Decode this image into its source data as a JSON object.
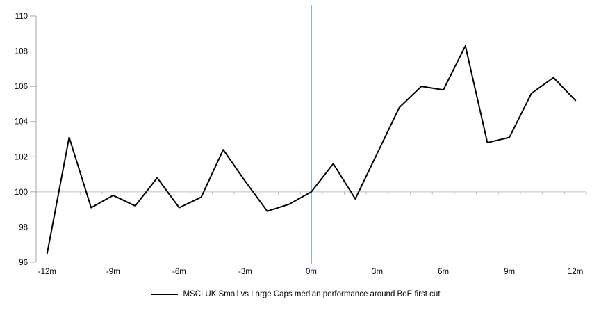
{
  "chart_data": {
    "type": "line",
    "title": "",
    "xlabel": "",
    "ylabel": "",
    "x": [
      -12,
      -11,
      -10,
      -9,
      -8,
      -7,
      -6,
      -5,
      -4,
      -3,
      -2,
      -1,
      0,
      1,
      2,
      3,
      4,
      5,
      6,
      7,
      8,
      9,
      10,
      11,
      12
    ],
    "series": [
      {
        "name": "MSCI UK Small vs Large Caps median performance around BoE first cut",
        "values": [
          96.5,
          103.1,
          99.1,
          99.8,
          99.2,
          100.8,
          99.1,
          99.7,
          102.4,
          100.6,
          98.9,
          99.3,
          100.0,
          101.6,
          99.6,
          102.2,
          104.8,
          106.0,
          105.8,
          108.3,
          102.8,
          103.1,
          105.6,
          106.5,
          105.2
        ]
      }
    ],
    "ylim": [
      96,
      110
    ],
    "y_ticks": [
      96,
      98,
      100,
      102,
      104,
      106,
      108,
      110
    ],
    "x_tick_labels": [
      "-12m",
      "-9m",
      "-6m",
      "-3m",
      "0m",
      "3m",
      "6m",
      "9m",
      "12m"
    ],
    "x_tick_months": [
      -12,
      -9,
      -6,
      -3,
      0,
      3,
      6,
      9,
      12
    ],
    "baseline_value": 100,
    "event_line_month": 0,
    "grid": "off",
    "legend": {
      "label": "MSCI UK Small vs Large Caps median performance around BoE first cut",
      "position": "bottom"
    },
    "colors": {
      "series": "#000000",
      "event_line": "#5b9bd5",
      "axis": "#a6a6a6",
      "baseline": "#bfbfbf",
      "label_text": "#000000"
    }
  }
}
